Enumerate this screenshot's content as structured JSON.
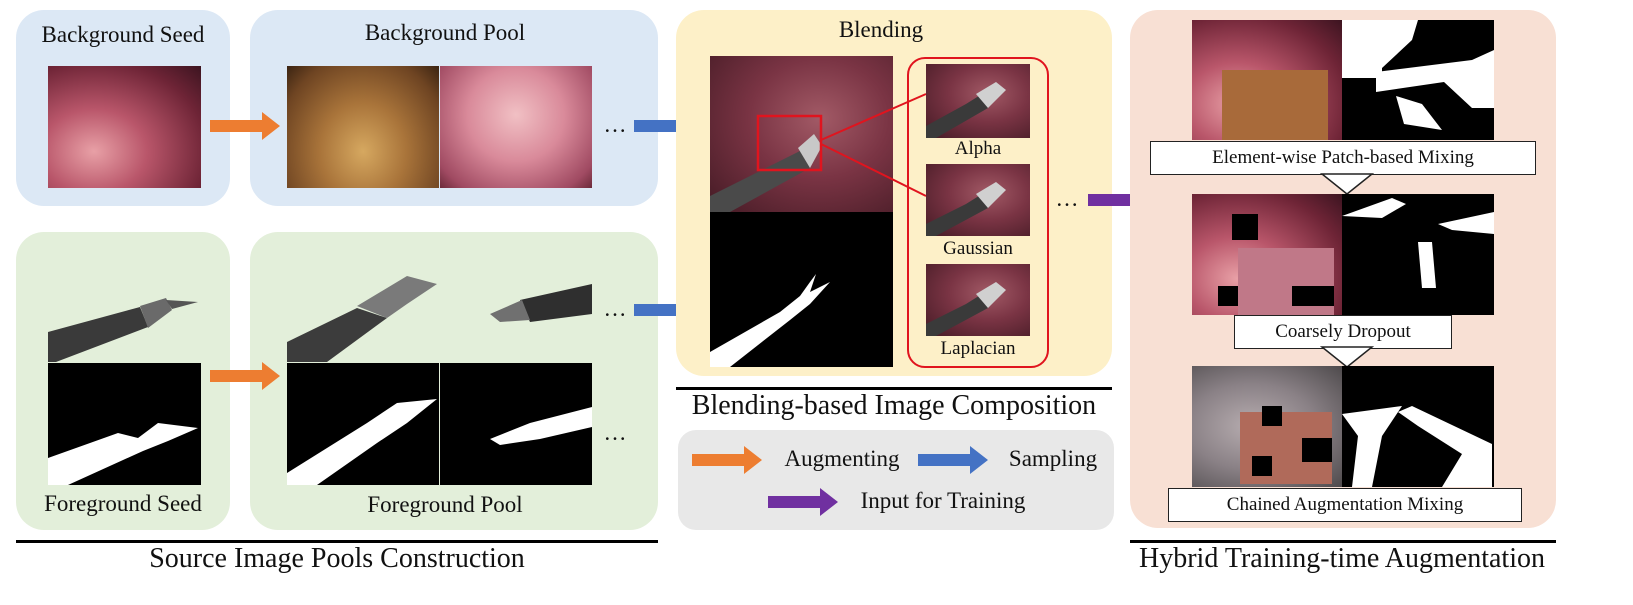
{
  "source": {
    "background_seed": "Background Seed",
    "background_pool": "Background Pool",
    "foreground_seed": "Foreground Seed",
    "foreground_pool": "Foreground Pool",
    "ellipsis": "…",
    "section_title": "Source Image Pools Construction"
  },
  "blending": {
    "title": "Blending",
    "methods": [
      "Alpha",
      "Gaussian",
      "Laplacian"
    ],
    "ellipsis": "…",
    "section_title": "Blending-based Image Composition"
  },
  "legend": {
    "augmenting": "Augmenting",
    "sampling": "Sampling",
    "input_for_training": "Input for Training"
  },
  "hybrid": {
    "mixing_1": "Element-wise Patch-based Mixing",
    "mixing_2": "Coarsely Dropout",
    "mixing_3": "Chained Augmentation Mixing",
    "section_title": "Hybrid Training-time Augmentation"
  },
  "colors": {
    "augmenting_arrow": "#ed7d31",
    "sampling_arrow": "#4472c4",
    "training_arrow": "#7030a0",
    "zoom_box": "#e0141e"
  }
}
